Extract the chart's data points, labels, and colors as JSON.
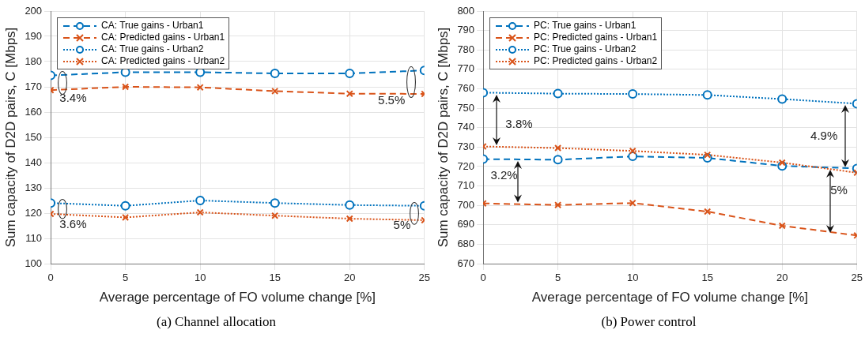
{
  "chart_data": [
    {
      "type": "line",
      "title": "(a) Channel allocation",
      "xlabel": "Average percentage of FO volume change [%]",
      "ylabel": "Sum capacity of D2D pairs, C [Mbps]",
      "x": [
        0,
        5,
        10,
        15,
        20,
        25
      ],
      "xlim": [
        0,
        25
      ],
      "xticks": [
        0,
        5,
        10,
        15,
        20,
        25
      ],
      "ylim": [
        100,
        200
      ],
      "yticks": [
        100,
        110,
        120,
        130,
        140,
        150,
        160,
        170,
        180,
        190,
        200
      ],
      "grid": true,
      "legend": "top left",
      "series": [
        {
          "name": "CA: True gains - Urban1",
          "color": "#0072bd",
          "marker": "circle",
          "line_style": "dashed",
          "values": [
            174.5,
            175.8,
            175.8,
            175.3,
            175.3,
            176.5
          ]
        },
        {
          "name": "CA: Predicted gains - Urban1",
          "color": "#d95319",
          "marker": "cross",
          "line_style": "dashed",
          "values": [
            168.7,
            170,
            169.8,
            168.3,
            167.3,
            167.2
          ]
        },
        {
          "name": "CA: True gains - Urban2",
          "color": "#0072bd",
          "marker": "circle",
          "line_style": "dotted",
          "values": [
            124,
            122.9,
            125,
            124,
            123.2,
            122.9
          ]
        },
        {
          "name": "CA: Predicted gains - Urban2",
          "color": "#d95319",
          "marker": "cross",
          "line_style": "dotted",
          "values": [
            119.7,
            118.3,
            120.3,
            119,
            117.8,
            117.2
          ]
        }
      ],
      "annotations": [
        "3.4%",
        "5.5%",
        "3.6%",
        "5%"
      ]
    },
    {
      "type": "line",
      "title": "(b) Power control",
      "xlabel": "Average percentage of FO volume change [%]",
      "ylabel": "Sum capacity of D2D pairs, C [Mbps]",
      "x": [
        0,
        5,
        10,
        15,
        20,
        25
      ],
      "xlim": [
        0,
        25
      ],
      "xticks": [
        0,
        5,
        10,
        15,
        20,
        25
      ],
      "ylim": [
        670,
        800
      ],
      "yticks": [
        670,
        680,
        690,
        700,
        710,
        720,
        730,
        740,
        750,
        760,
        770,
        780,
        790,
        800
      ],
      "grid": true,
      "legend": "top left",
      "series": [
        {
          "name": "PC: True gains - Urban1",
          "color": "#0072bd",
          "marker": "circle",
          "line_style": "dashed",
          "values": [
            723.8,
            723.5,
            725.2,
            724.4,
            720.3,
            719
          ]
        },
        {
          "name": "PC: Predicted gains - Urban1",
          "color": "#d95319",
          "marker": "cross",
          "line_style": "dashed",
          "values": [
            701,
            700.2,
            701.2,
            696.8,
            689.5,
            684.5
          ]
        },
        {
          "name": "PC: True gains - Urban2",
          "color": "#0072bd",
          "marker": "circle",
          "line_style": "dotted",
          "values": [
            758,
            757.5,
            757.3,
            756.8,
            754.7,
            752.3
          ]
        },
        {
          "name": "PC: Predicted gains - Urban2",
          "color": "#d95319",
          "marker": "cross",
          "line_style": "dotted",
          "values": [
            730.3,
            729.5,
            728,
            726,
            722,
            716.8
          ]
        }
      ],
      "annotations": [
        "3.8%",
        "3.2%",
        "4.9%",
        "5%"
      ]
    }
  ]
}
